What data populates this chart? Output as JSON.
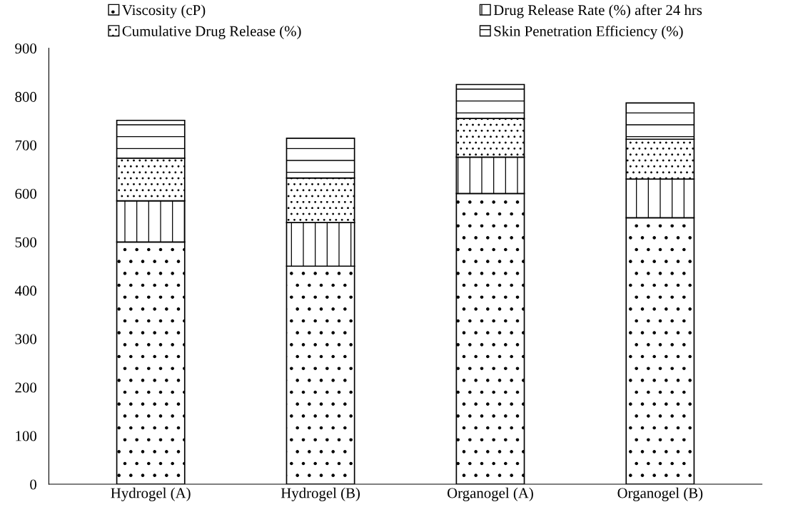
{
  "chart_data": {
    "type": "bar",
    "stacked": true,
    "categories": [
      "Hydrogel (A)",
      "Hydrogel (B)",
      "Organogel (A)",
      "Organogel (B)"
    ],
    "series": [
      {
        "name": "Viscosity (cP)",
        "values": [
          500,
          450,
          600,
          550
        ]
      },
      {
        "name": "Drug Release Rate (%) after 24 hrs",
        "values": [
          85,
          90,
          75,
          80
        ]
      },
      {
        "name": "Cumulative Drug Release (%)",
        "values": [
          88,
          92,
          80,
          82
        ]
      },
      {
        "name": "Skin Penetration Efficiency (%)",
        "values": [
          78,
          82,
          70,
          75
        ]
      }
    ],
    "ylim": [
      0,
      900
    ],
    "yticks": [
      0,
      100,
      200,
      300,
      400,
      500,
      600,
      700,
      800,
      900
    ],
    "grid": false,
    "legend": "top"
  }
}
